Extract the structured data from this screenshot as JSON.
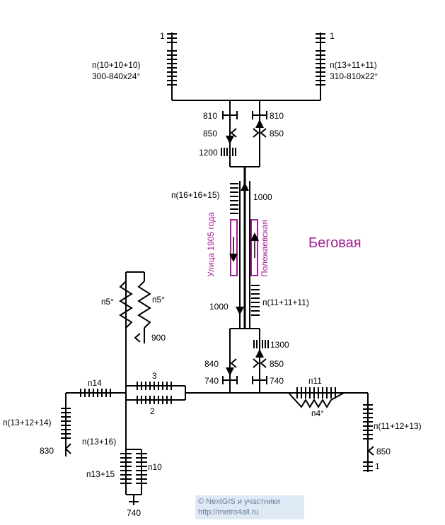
{
  "station": {
    "name": "Беговая"
  },
  "platform_labels": {
    "left": "Улица 1905 года",
    "right": "Полежаевская"
  },
  "signals": {
    "s1_left": "1",
    "s1_right": "1",
    "s1_bottom": "1",
    "s810_left": "810",
    "s810_right": "810",
    "s850_left": "850",
    "s850_right": "850",
    "s1200": "1200",
    "s1000_top": "1000",
    "s1000_bottom": "1000",
    "s1300": "1300",
    "s840": "840",
    "s850_lower": "850",
    "s740_left": "740",
    "s740_right": "740",
    "s900": "900",
    "s830": "830",
    "s850_bottom": "850",
    "s740_bottom": "740",
    "track3": "3",
    "track2": "2"
  },
  "lineups": {
    "top_left_stack": "п(10+10+10)",
    "top_left_spec": "300-840х24°",
    "top_right_stack": "п(13+11+11)",
    "top_right_spec": "310-810х22°",
    "n16": "п(16+16+15)",
    "n11": "п(11+11+11)",
    "loop_left": "п5°",
    "loop_right": "п5°",
    "n14": "п14",
    "n13_12_14": "п(13+12+14)",
    "n13_16": "п(13+16)",
    "n13_15": "п13+15",
    "n10": "п10",
    "n11_single": "п11",
    "n4deg": "п4°",
    "n11_12_13": "п(11+12+13)"
  },
  "copyright": {
    "line1": "© NextGIS и участники",
    "line2": "http://metro4all.ru"
  }
}
